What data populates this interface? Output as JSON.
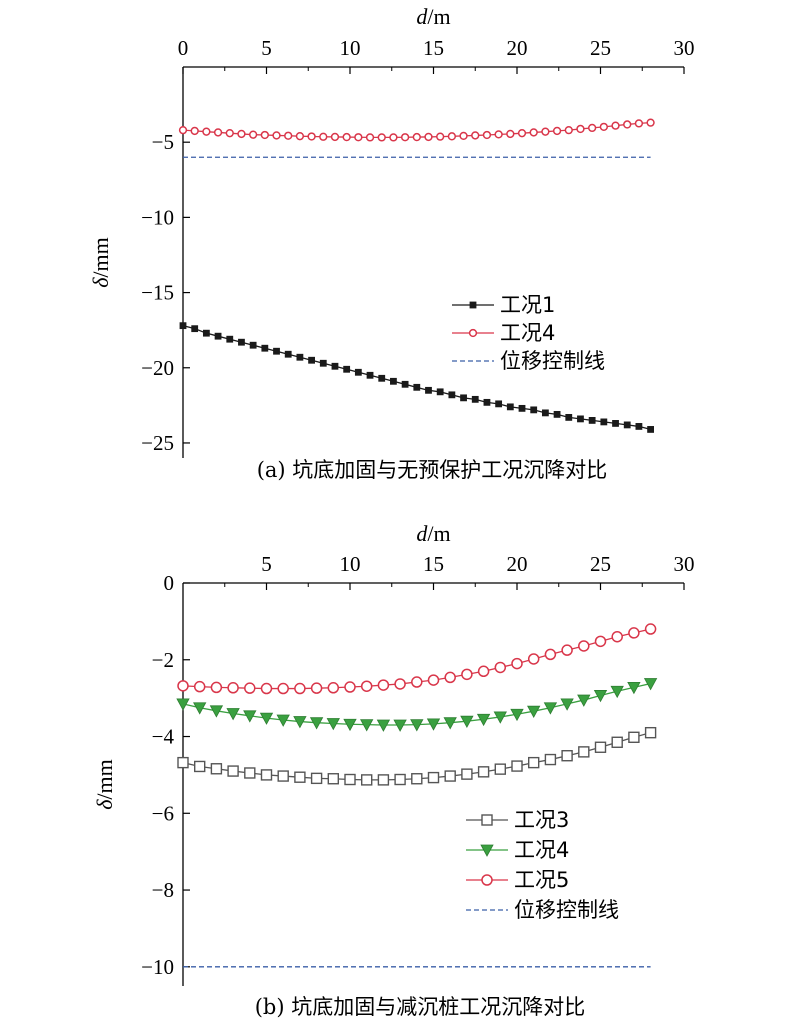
{
  "chart_data": [
    {
      "type": "line",
      "x_label_italic": "d",
      "x_label_unit": "/m",
      "y_label_italic": "δ",
      "y_label_unit": "/mm",
      "x_ticks": [
        0,
        5,
        10,
        15,
        20,
        25,
        30
      ],
      "y_ticks": [
        -5,
        -10,
        -15,
        -20,
        -25
      ],
      "xlim": [
        0,
        30
      ],
      "ylim": [
        -26,
        0
      ],
      "x_axis_position": "top",
      "y_axis_reversed": false,
      "grid": false,
      "legend_placement": "middle",
      "caption": "(a) 坑底加固与无预保护工况沉降对比",
      "x": [
        0,
        0.7,
        1.4,
        2.1,
        2.8,
        3.5,
        4.2,
        4.9,
        5.6,
        6.3,
        7,
        7.7,
        8.4,
        9.1,
        9.8,
        10.5,
        11.2,
        11.9,
        12.6,
        13.3,
        14,
        14.7,
        15.4,
        16.1,
        16.8,
        17.5,
        18.2,
        18.9,
        19.6,
        20.3,
        21,
        21.7,
        22.4,
        23.1,
        23.8,
        24.5,
        25.2,
        25.9,
        26.6,
        27.3,
        28
      ],
      "series": [
        {
          "name": "工况1",
          "color": "#1a1a1a",
          "marker": "filled-square",
          "values": [
            -17.2,
            -17.4,
            -17.7,
            -17.9,
            -18.1,
            -18.3,
            -18.5,
            -18.7,
            -18.9,
            -19.1,
            -19.3,
            -19.5,
            -19.7,
            -19.9,
            -20.1,
            -20.3,
            -20.5,
            -20.7,
            -20.9,
            -21.1,
            -21.3,
            -21.5,
            -21.6,
            -21.8,
            -22.0,
            -22.1,
            -22.3,
            -22.4,
            -22.6,
            -22.7,
            -22.8,
            -23.0,
            -23.1,
            -23.3,
            -23.4,
            -23.5,
            -23.6,
            -23.7,
            -23.8,
            -23.9,
            -24.1
          ]
        },
        {
          "name": "工况4",
          "color": "#d9364a",
          "marker": "open-circle",
          "values": [
            -4.2,
            -4.25,
            -4.3,
            -4.35,
            -4.4,
            -4.45,
            -4.5,
            -4.52,
            -4.55,
            -4.57,
            -4.6,
            -4.62,
            -4.64,
            -4.65,
            -4.66,
            -4.67,
            -4.68,
            -4.68,
            -4.68,
            -4.67,
            -4.66,
            -4.65,
            -4.63,
            -4.61,
            -4.58,
            -4.55,
            -4.52,
            -4.48,
            -4.45,
            -4.4,
            -4.35,
            -4.3,
            -4.25,
            -4.2,
            -4.12,
            -4.05,
            -3.98,
            -3.9,
            -3.82,
            -3.75,
            -3.7
          ]
        },
        {
          "name": "位移控制线",
          "color": "#3b5fa8",
          "marker": "dashed-line",
          "x": [
            0,
            28
          ],
          "values": [
            -6,
            -6
          ]
        }
      ]
    },
    {
      "type": "line",
      "x_label_italic": "d",
      "x_label_unit": "/m",
      "y_label_italic": "δ",
      "y_label_unit": "/mm",
      "x_ticks": [
        5,
        10,
        15,
        20,
        25,
        30
      ],
      "y_ticks": [
        0,
        -2,
        -4,
        -6,
        -8,
        -10
      ],
      "xlim": [
        0,
        30
      ],
      "ylim": [
        -10.5,
        0
      ],
      "x_axis_position": "top",
      "grid": false,
      "legend_placement": "lower-right",
      "caption": "(b) 坑底加固与减沉桩工况沉降对比",
      "x": [
        0,
        1,
        2,
        3,
        4,
        5,
        6,
        7,
        8,
        9,
        10,
        11,
        12,
        13,
        14,
        15,
        16,
        17,
        18,
        19,
        20,
        21,
        22,
        23,
        24,
        25,
        26,
        27,
        28
      ],
      "series": [
        {
          "name": "工况3",
          "color": "#555555",
          "marker": "open-square",
          "values": [
            -4.68,
            -4.78,
            -4.84,
            -4.9,
            -4.95,
            -5.0,
            -5.03,
            -5.06,
            -5.09,
            -5.1,
            -5.12,
            -5.13,
            -5.13,
            -5.12,
            -5.1,
            -5.07,
            -5.03,
            -4.98,
            -4.92,
            -4.85,
            -4.77,
            -4.68,
            -4.6,
            -4.5,
            -4.4,
            -4.28,
            -4.15,
            -4.02,
            -3.9
          ]
        },
        {
          "name": "工况4",
          "color": "#3aa040",
          "marker": "filled-triangle-down",
          "values": [
            -3.15,
            -3.25,
            -3.33,
            -3.4,
            -3.46,
            -3.52,
            -3.57,
            -3.61,
            -3.64,
            -3.66,
            -3.68,
            -3.69,
            -3.7,
            -3.7,
            -3.69,
            -3.67,
            -3.64,
            -3.6,
            -3.55,
            -3.49,
            -3.42,
            -3.34,
            -3.25,
            -3.15,
            -3.05,
            -2.93,
            -2.82,
            -2.72,
            -2.62
          ]
        },
        {
          "name": "工况5",
          "color": "#d9364a",
          "marker": "open-circle",
          "values": [
            -2.68,
            -2.7,
            -2.72,
            -2.73,
            -2.74,
            -2.75,
            -2.75,
            -2.75,
            -2.74,
            -2.73,
            -2.71,
            -2.69,
            -2.66,
            -2.63,
            -2.58,
            -2.53,
            -2.46,
            -2.38,
            -2.3,
            -2.2,
            -2.1,
            -1.98,
            -1.86,
            -1.75,
            -1.64,
            -1.52,
            -1.4,
            -1.3,
            -1.2
          ]
        },
        {
          "name": "位移控制线",
          "color": "#3b5fa8",
          "marker": "dashed-line",
          "x": [
            0,
            28
          ],
          "values": [
            -10,
            -10
          ]
        }
      ]
    }
  ]
}
